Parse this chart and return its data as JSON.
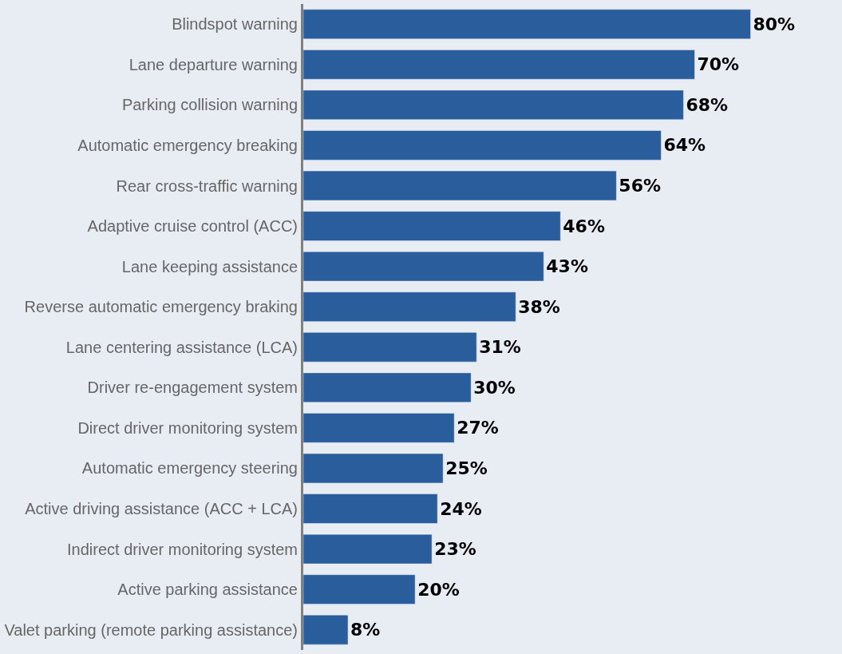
{
  "chart_data": {
    "type": "bar",
    "orientation": "horizontal",
    "categories": [
      "Blindspot warning",
      "Lane departure warning",
      "Parking collision warning",
      "Automatic emergency breaking",
      "Rear cross-traffic warning",
      "Adaptive cruise control (ACC)",
      "Lane keeping assistance",
      "Reverse automatic emergency braking",
      "Lane centering assistance (LCA)",
      "Driver re-engagement system",
      "Direct driver monitoring system",
      "Automatic emergency steering",
      "Active driving assistance (ACC + LCA)",
      "Indirect driver monitoring system",
      "Active parking assistance",
      "Valet parking (remote parking assistance)"
    ],
    "values": [
      80,
      70,
      68,
      64,
      56,
      46,
      43,
      38,
      31,
      30,
      27,
      25,
      24,
      23,
      20,
      8
    ],
    "value_labels": [
      "80%",
      "70%",
      "68%",
      "64%",
      "56%",
      "46%",
      "43%",
      "38%",
      "31%",
      "30%",
      "27%",
      "25%",
      "24%",
      "23%",
      "20%",
      "8%"
    ],
    "color": "#2a5d9b",
    "grid": false,
    "legend": false
  }
}
